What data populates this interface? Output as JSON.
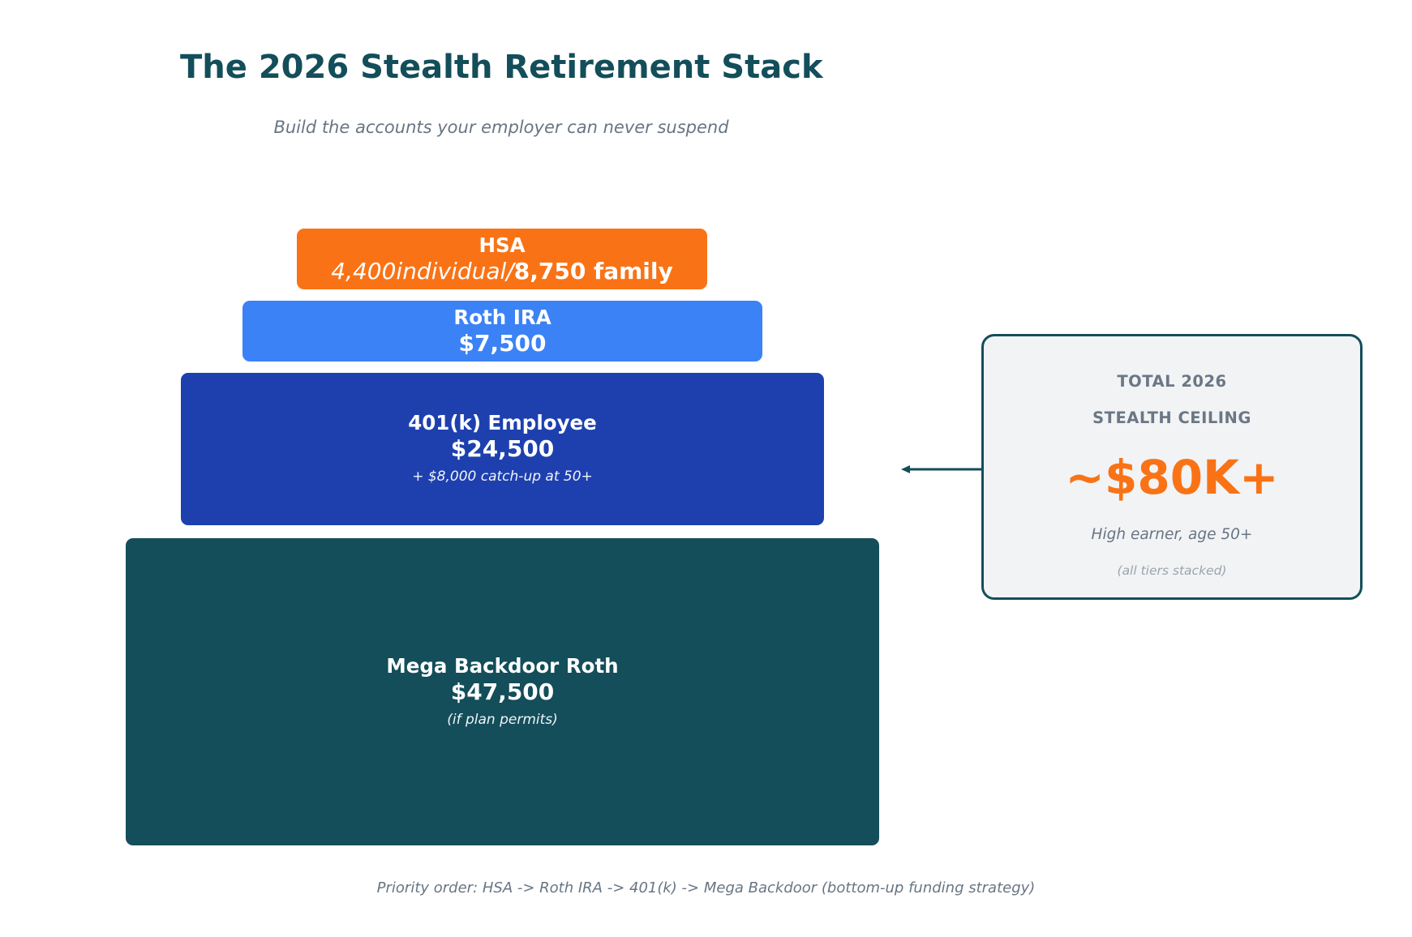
{
  "title": "The 2026 Stealth Retirement Stack",
  "subtitle": "Build the accounts your employer can never suspend",
  "colors": {
    "hsa": "#f97316",
    "roth_ira": "#3b82f6",
    "employee_401k": "#1e40af",
    "mega_backdoor": "#134e5a",
    "callout_border": "#134e5a",
    "callout_accent": "#f97316"
  },
  "tiers": {
    "hsa": {
      "name": "HSA",
      "amount_part_a": "4,400individual/",
      "amount_part_b": "8,750 family"
    },
    "roth_ira": {
      "name": "Roth IRA",
      "amount": "$7,500"
    },
    "employee_401k": {
      "name": "401(k) Employee",
      "amount": "$24,500",
      "note": "+ $8,000 catch-up at 50+"
    },
    "mega_backdoor": {
      "name": "Mega Backdoor Roth",
      "amount": "$47,500",
      "note": "(if plan permits)"
    }
  },
  "callout": {
    "line1": "TOTAL 2026",
    "line2": "STEALTH CEILING",
    "total": "~$80K+",
    "subtitle": "High earner, age 50+",
    "note": "(all tiers stacked)"
  },
  "footer": "Priority order: HSA -> Roth IRA -> 401(k) -> Mega Backdoor (bottom-up funding strategy)"
}
